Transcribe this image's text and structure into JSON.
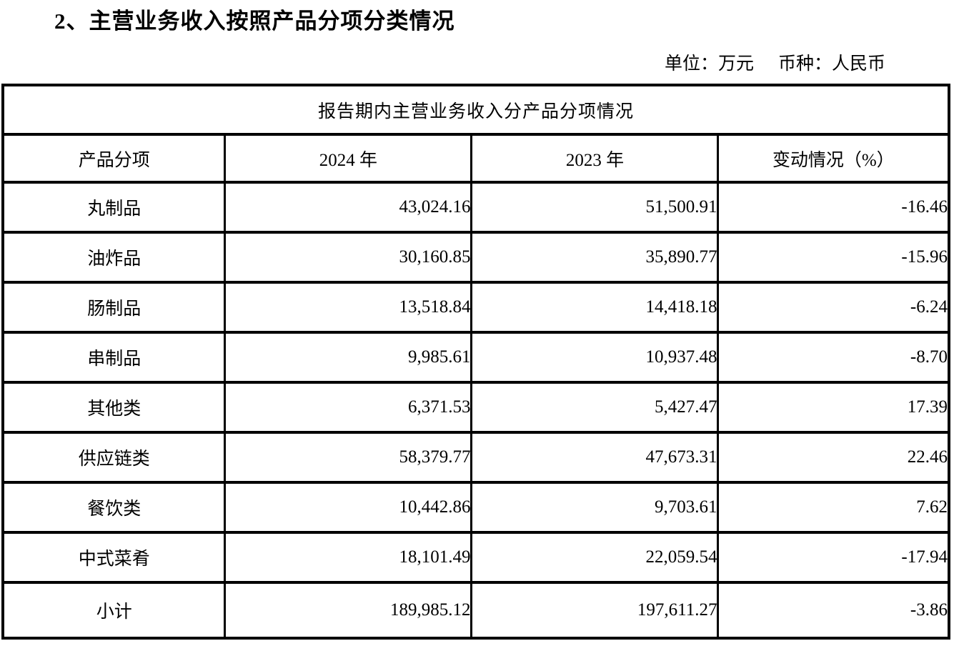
{
  "page": {
    "title": "2、主营业务收入按照产品分项分类情况",
    "unit_label": "单位：万元",
    "currency_label": "币种：人民币"
  },
  "table": {
    "caption": "报告期内主营业务收入分产品分项情况",
    "columns": [
      "产品分项",
      "2024 年",
      "2023 年",
      "变动情况（%）"
    ],
    "rows": [
      {
        "product": "丸制品",
        "y2024": "43,024.16",
        "y2023": "51,500.91",
        "change": "-16.46"
      },
      {
        "product": "油炸品",
        "y2024": "30,160.85",
        "y2023": "35,890.77",
        "change": "-15.96"
      },
      {
        "product": "肠制品",
        "y2024": "13,518.84",
        "y2023": "14,418.18",
        "change": "-6.24"
      },
      {
        "product": "串制品",
        "y2024": "9,985.61",
        "y2023": "10,937.48",
        "change": "-8.70"
      },
      {
        "product": "其他类",
        "y2024": "6,371.53",
        "y2023": "5,427.47",
        "change": "17.39"
      },
      {
        "product": "供应链类",
        "y2024": "58,379.77",
        "y2023": "47,673.31",
        "change": "22.46"
      },
      {
        "product": "餐饮类",
        "y2024": "10,442.86",
        "y2023": "9,703.61",
        "change": "7.62"
      },
      {
        "product": "中式菜肴",
        "y2024": "18,101.49",
        "y2023": "22,059.54",
        "change": "-17.94"
      },
      {
        "product": "小计",
        "y2024": "189,985.12",
        "y2023": "197,611.27",
        "change": "-3.86"
      }
    ]
  },
  "colors": {
    "text": "#000000",
    "border": "#000000",
    "background": "#ffffff"
  }
}
